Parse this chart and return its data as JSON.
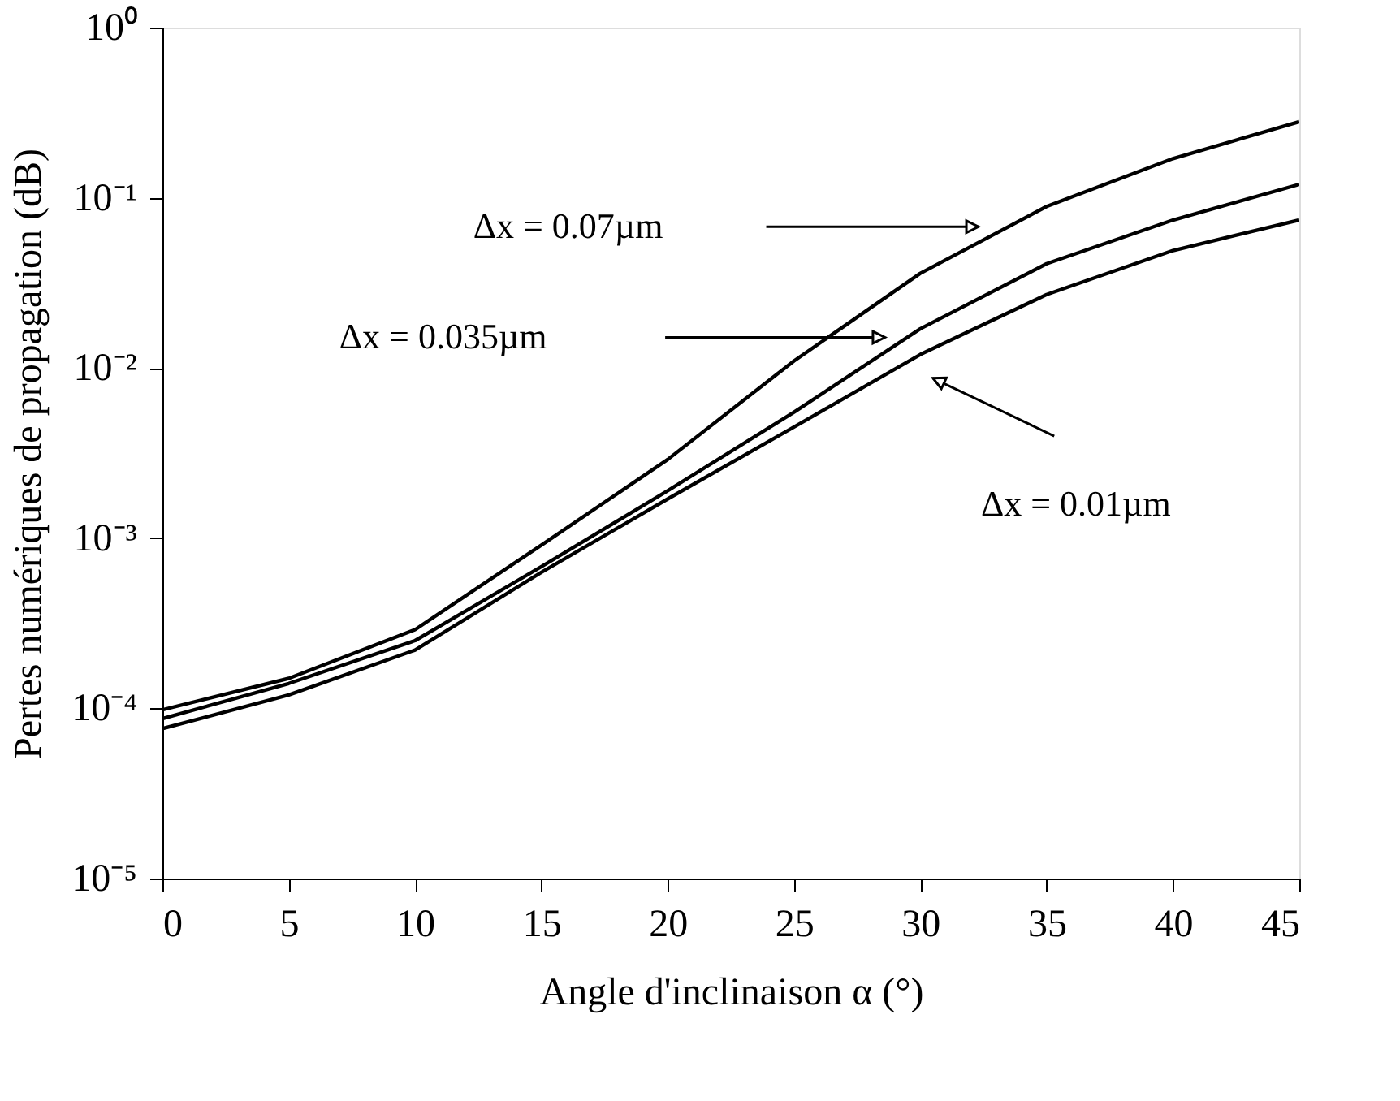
{
  "chart_data": {
    "type": "line",
    "xlabel": "Angle d'inclinaison α (°)",
    "ylabel": "Pertes numériques de propagation (dB)",
    "x": [
      0,
      5,
      10,
      15,
      20,
      25,
      30,
      35,
      40,
      45
    ],
    "series": [
      {
        "color": "#000000",
        "values": [
          9.8e-05,
          0.00015,
          0.00029,
          0.00091,
          0.0029,
          0.011,
          0.036,
          0.089,
          0.17,
          0.28
        ]
      },
      {
        "color": "#000000",
        "values": [
          8.7e-05,
          0.00014,
          0.00025,
          0.00068,
          0.0019,
          0.0055,
          0.017,
          0.041,
          0.074,
          0.12
        ]
      },
      {
        "color": "#000000",
        "values": [
          7.6e-05,
          0.00012,
          0.00022,
          0.00063,
          0.0017,
          0.0045,
          0.012,
          0.027,
          0.049,
          0.074
        ]
      }
    ],
    "annotations": [
      "Δx = 0.07µm",
      "Δx = 0.035µm",
      "Δx = 0.01µm"
    ],
    "xlim": [
      0,
      45
    ],
    "xticks": [
      0,
      5,
      10,
      15,
      20,
      25,
      30,
      35,
      40,
      45
    ],
    "ylim": [
      1e-05,
      1
    ],
    "yticks": [
      {
        "value": 1e-05,
        "label": "10⁻⁵"
      },
      {
        "value": 0.0001,
        "label": "10⁻⁴"
      },
      {
        "value": 0.001,
        "label": "10⁻³"
      },
      {
        "value": 0.01,
        "label": "10⁻²"
      },
      {
        "value": 0.1,
        "label": "10⁻¹"
      },
      {
        "value": 1,
        "label": "10⁰"
      }
    ],
    "log": "y",
    "grid": false,
    "legend": false,
    "marker": "none",
    "line_style": "solid"
  }
}
